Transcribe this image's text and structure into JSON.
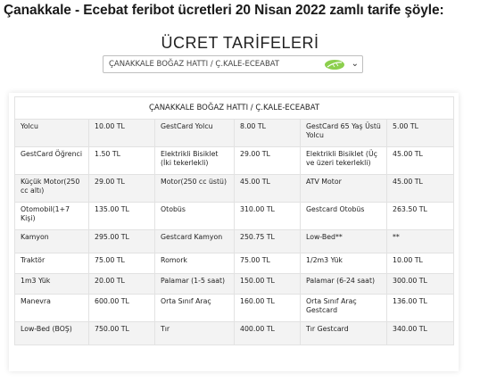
{
  "headline": "Çanakkale - Ecebat feribot ücretleri 20 Nisan 2022 zamlı tarife şöyle:",
  "title": "ÜCRET TARİFELERİ",
  "route_select": {
    "value": "ÇANAKKALE BOĞAZ HATTI / Ç.KALE-ECEABAT"
  },
  "table": {
    "header": "ÇANAKKALE BOĞAZ HATTI / Ç.KALE-ECEABAT",
    "rows": [
      [
        "Yolcu",
        "10.00 TL",
        "GestCard Yolcu",
        "8.00 TL",
        "GestCard 65 Yaş Üstü Yolcu",
        "5.00 TL"
      ],
      [
        "GestCard Öğrenci",
        "1.50 TL",
        "Elektrikli Bisiklet (İki tekerlekli)",
        "29.00 TL",
        "Elektrikli Bisiklet (Üç ve üzeri tekerlekli)",
        "45.00 TL"
      ],
      [
        "Küçük Motor(250 cc altı)",
        "29.00 TL",
        "Motor(250 cc üstü)",
        "45.00 TL",
        "ATV Motor",
        "45.00 TL"
      ],
      [
        "Otomobil(1+7 Kişi)",
        "135.00 TL",
        "Otobüs",
        "310.00 TL",
        "Gestcard Otobüs",
        "263.50 TL"
      ],
      [
        "Kamyon",
        "295.00 TL",
        "Gestcard Kamyon",
        "250.75 TL",
        "Low-Bed**",
        "**"
      ],
      [
        "Traktör",
        "75.00 TL",
        "Romork",
        "75.00 TL",
        "1/2m3 Yük",
        "10.00 TL"
      ],
      [
        "1m3 Yük",
        "20.00 TL",
        "Palamar (1-5 saat)",
        "150.00 TL",
        "Palamar (6-24 saat)",
        "300.00 TL"
      ],
      [
        "Manevra",
        "600.00 TL",
        "Orta Sınıf Araç",
        "160.00 TL",
        "Orta Sınıf Araç Gestcard",
        "136.00 TL"
      ],
      [
        "Low-Bed (BOŞ)",
        "750.00 TL",
        "Tır",
        "400.00 TL",
        "Tır Gestcard",
        "340.00 TL"
      ]
    ]
  },
  "colors": {
    "row_shade": "#f3f3f3",
    "leaf_icon": "#8ccf4d"
  }
}
